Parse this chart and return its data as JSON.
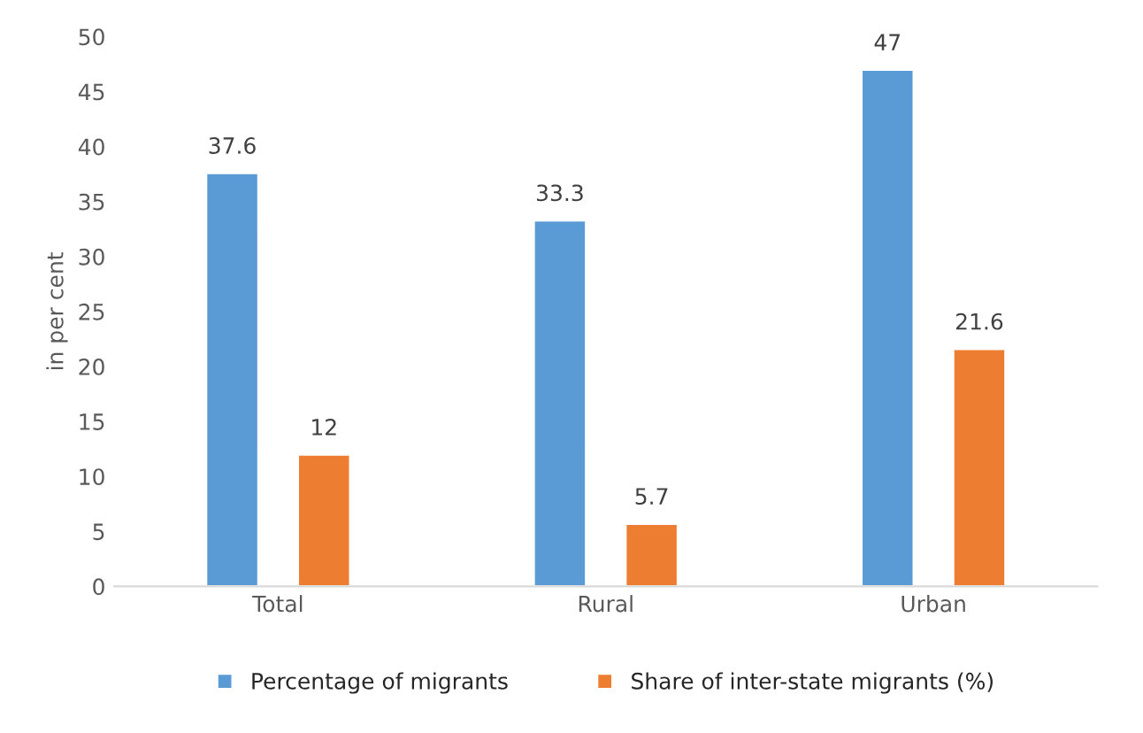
{
  "chart_data": {
    "type": "bar",
    "ylabel": "in per cent",
    "categories": [
      "Total",
      "Rural",
      "Urban"
    ],
    "series": [
      {
        "name": "Percentage of migrants",
        "color": "#5b9bd5",
        "values": [
          37.6,
          33.3,
          47
        ]
      },
      {
        "name": "Share of inter-state migrants (%)",
        "color": "#ed7d31",
        "values": [
          12,
          5.7,
          21.6
        ]
      }
    ],
    "ylim": [
      0,
      50
    ],
    "yticks": [
      0,
      5,
      10,
      15,
      20,
      25,
      30,
      35,
      40,
      45,
      50
    ],
    "data_labels": true,
    "legend": "bottom",
    "grid": false
  }
}
